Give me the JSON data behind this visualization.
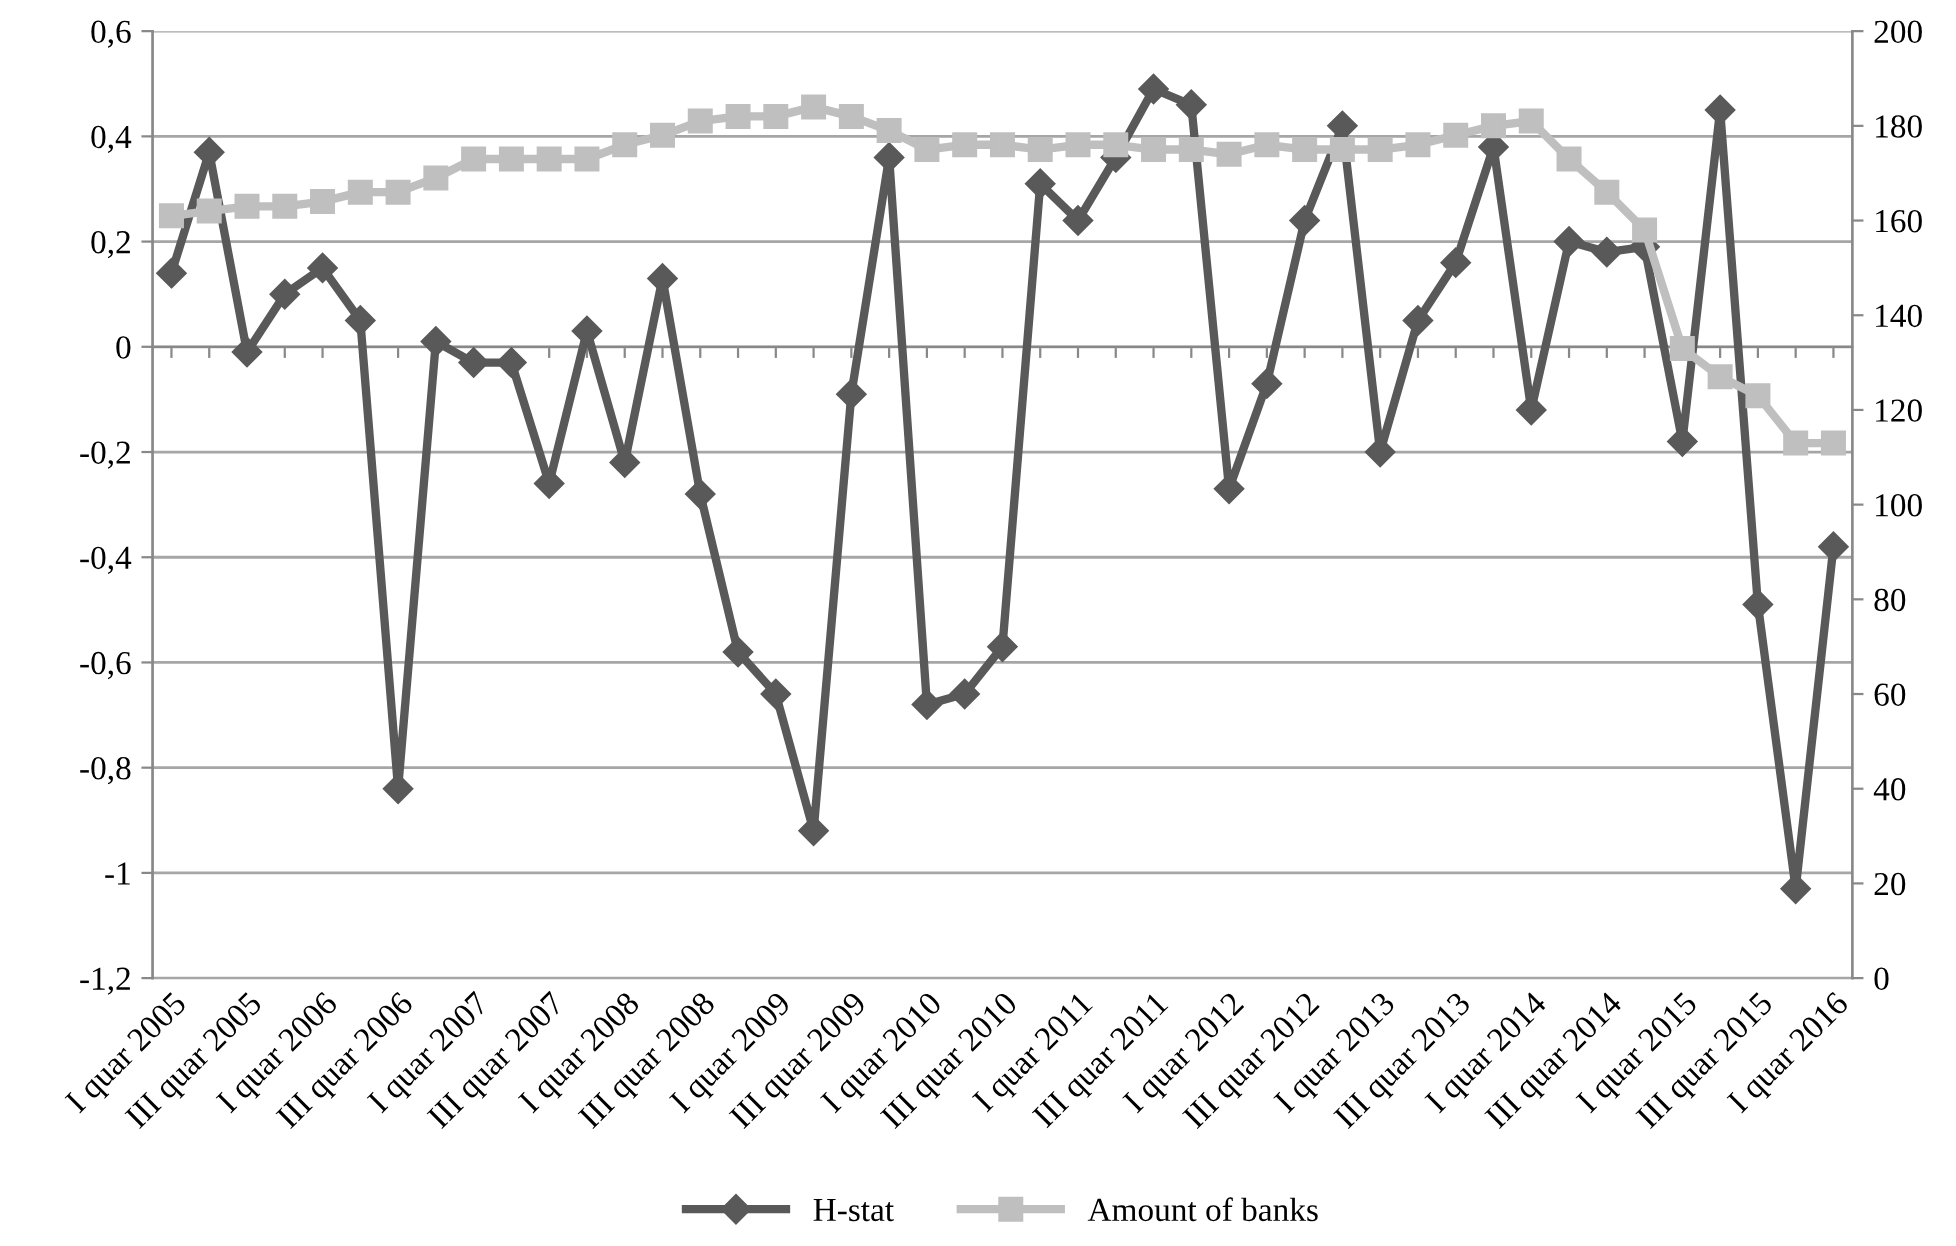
{
  "chart_data": {
    "type": "line",
    "categories": [
      "I quar 2005",
      null,
      "III quar 2005",
      null,
      "I quar 2006",
      null,
      "III quar 2006",
      null,
      "I quar 2007",
      null,
      "III quar 2007",
      null,
      "I quar 2008",
      null,
      "III quar 2008",
      null,
      "I quar 2009",
      null,
      "III quar 2009",
      null,
      "I quar 2010",
      null,
      "III quar 2010",
      null,
      "I quar 2011",
      null,
      "III quar 2011",
      null,
      "I quar 2012",
      null,
      "III quar 2012",
      null,
      "I quar 2013",
      null,
      "III quar 2013",
      null,
      "I quar 2014",
      null,
      "III quar 2014",
      null,
      "I quar 2015",
      null,
      "III quar 2015",
      null,
      "I quar 2016"
    ],
    "series": [
      {
        "name": "H-stat",
        "color": "#595959",
        "marker": "diamond",
        "values": [
          0.14,
          0.37,
          -0.01,
          0.1,
          0.15,
          0.05,
          -0.84,
          0.01,
          -0.03,
          -0.03,
          -0.26,
          0.03,
          -0.22,
          0.13,
          -0.28,
          -0.58,
          -0.66,
          -0.92,
          -0.09,
          0.36,
          -0.68,
          -0.66,
          -0.57,
          0.31,
          0.24,
          0.36,
          0.49,
          0.46,
          -0.27,
          -0.07,
          0.24,
          0.42,
          -0.2,
          0.05,
          0.16,
          0.38,
          -0.12,
          0.2,
          0.18,
          0.19,
          -0.18,
          0.45,
          -0.49,
          -1.03,
          -0.38
        ]
      },
      {
        "name": "Amount of banks",
        "color": "#bfbfbf",
        "marker": "square",
        "axis": "y2",
        "values": [
          161,
          162,
          163,
          163,
          164,
          166,
          166,
          169,
          173,
          173,
          173,
          173,
          176,
          178,
          181,
          182,
          182,
          184,
          182,
          179,
          175,
          176,
          176,
          175,
          176,
          176,
          175,
          175,
          174,
          176,
          175,
          175,
          175,
          176,
          178,
          180,
          181,
          173,
          166,
          158,
          133,
          127,
          123,
          113,
          113
        ]
      }
    ],
    "ylim": [
      -1.2,
      0.6
    ],
    "yticks": [
      {
        "value": -1.2,
        "label": "-1,2"
      },
      {
        "value": -1,
        "label": "-1"
      },
      {
        "value": -0.8,
        "label": "-0,8"
      },
      {
        "value": -0.6,
        "label": "-0,6"
      },
      {
        "value": -0.4,
        "label": "-0,4"
      },
      {
        "value": -0.2,
        "label": "-0,2"
      },
      0,
      {
        "value": 0.2,
        "label": "0,2"
      },
      {
        "value": 0.4,
        "label": "0,4"
      },
      {
        "value": 0.6,
        "label": "0,6"
      }
    ],
    "y2lim": [
      0,
      200
    ],
    "y2ticks": [
      0,
      20,
      40,
      60,
      80,
      100,
      120,
      140,
      160,
      180,
      200
    ],
    "grid": "y",
    "legend": "bottom",
    "line_style": "solid"
  }
}
